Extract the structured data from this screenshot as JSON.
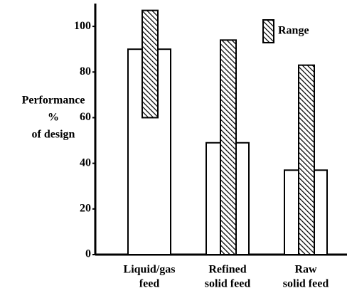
{
  "chart_data": {
    "type": "bar",
    "ylabel": [
      "Performance",
      "%",
      "of design"
    ],
    "categories": [
      [
        "Liquid/gas",
        "feed"
      ],
      [
        "Refined",
        "solid feed"
      ],
      [
        "Raw",
        "solid feed"
      ]
    ],
    "values": [
      90,
      49,
      37
    ],
    "color": "#ffffff",
    "range": {
      "name": "Range",
      "low": [
        60,
        0,
        0
      ],
      "high": [
        107,
        94,
        83
      ]
    },
    "ylim": [
      0,
      110
    ],
    "yticks": [
      0,
      20,
      40,
      60,
      80,
      100
    ]
  }
}
